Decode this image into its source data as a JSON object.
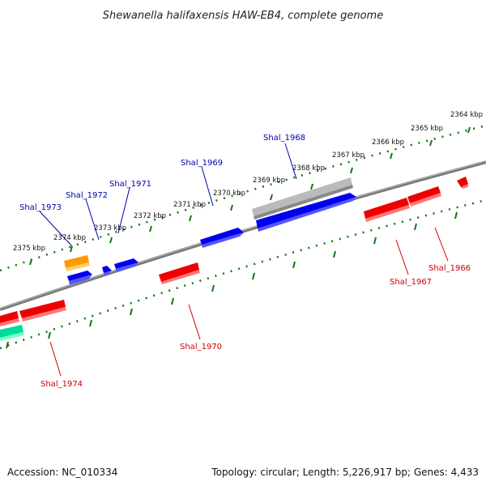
{
  "title": "Shewanella halifaxensis HAW-EB4, complete genome",
  "footer": {
    "accession": "Accession: NC_010334",
    "summary": "Topology: circular; Length: 5,226,917 bp; Genes: 4,433"
  },
  "colors": {
    "forward": "#0000ee",
    "reverse": "#ee0000",
    "orange": "#ff9900",
    "grey": "#bbbbbb",
    "teal": "#00dd99",
    "backbone": "#777777",
    "tick": "#117711",
    "forward_label": "#0000aa",
    "reverse_label": "#cc0000"
  },
  "scale": {
    "top_labels": [
      "2364 kbp",
      "2365 kbp",
      "2366 kbp",
      "2367 kbp",
      "2368 kbp",
      "2369 kbp",
      "2370 kbp",
      "2371 kbp",
      "2372 kbp",
      "2373 kbp",
      "2374 kbp",
      "2375 kbp"
    ]
  },
  "genes": {
    "forward": [
      "Shal_1968",
      "Shal_1969",
      "Shal_1971",
      "Shal_1972",
      "Shal_1973"
    ],
    "reverse": [
      "Shal_1966",
      "Shal_1967",
      "Shal_1970",
      "Shal_1974"
    ]
  }
}
